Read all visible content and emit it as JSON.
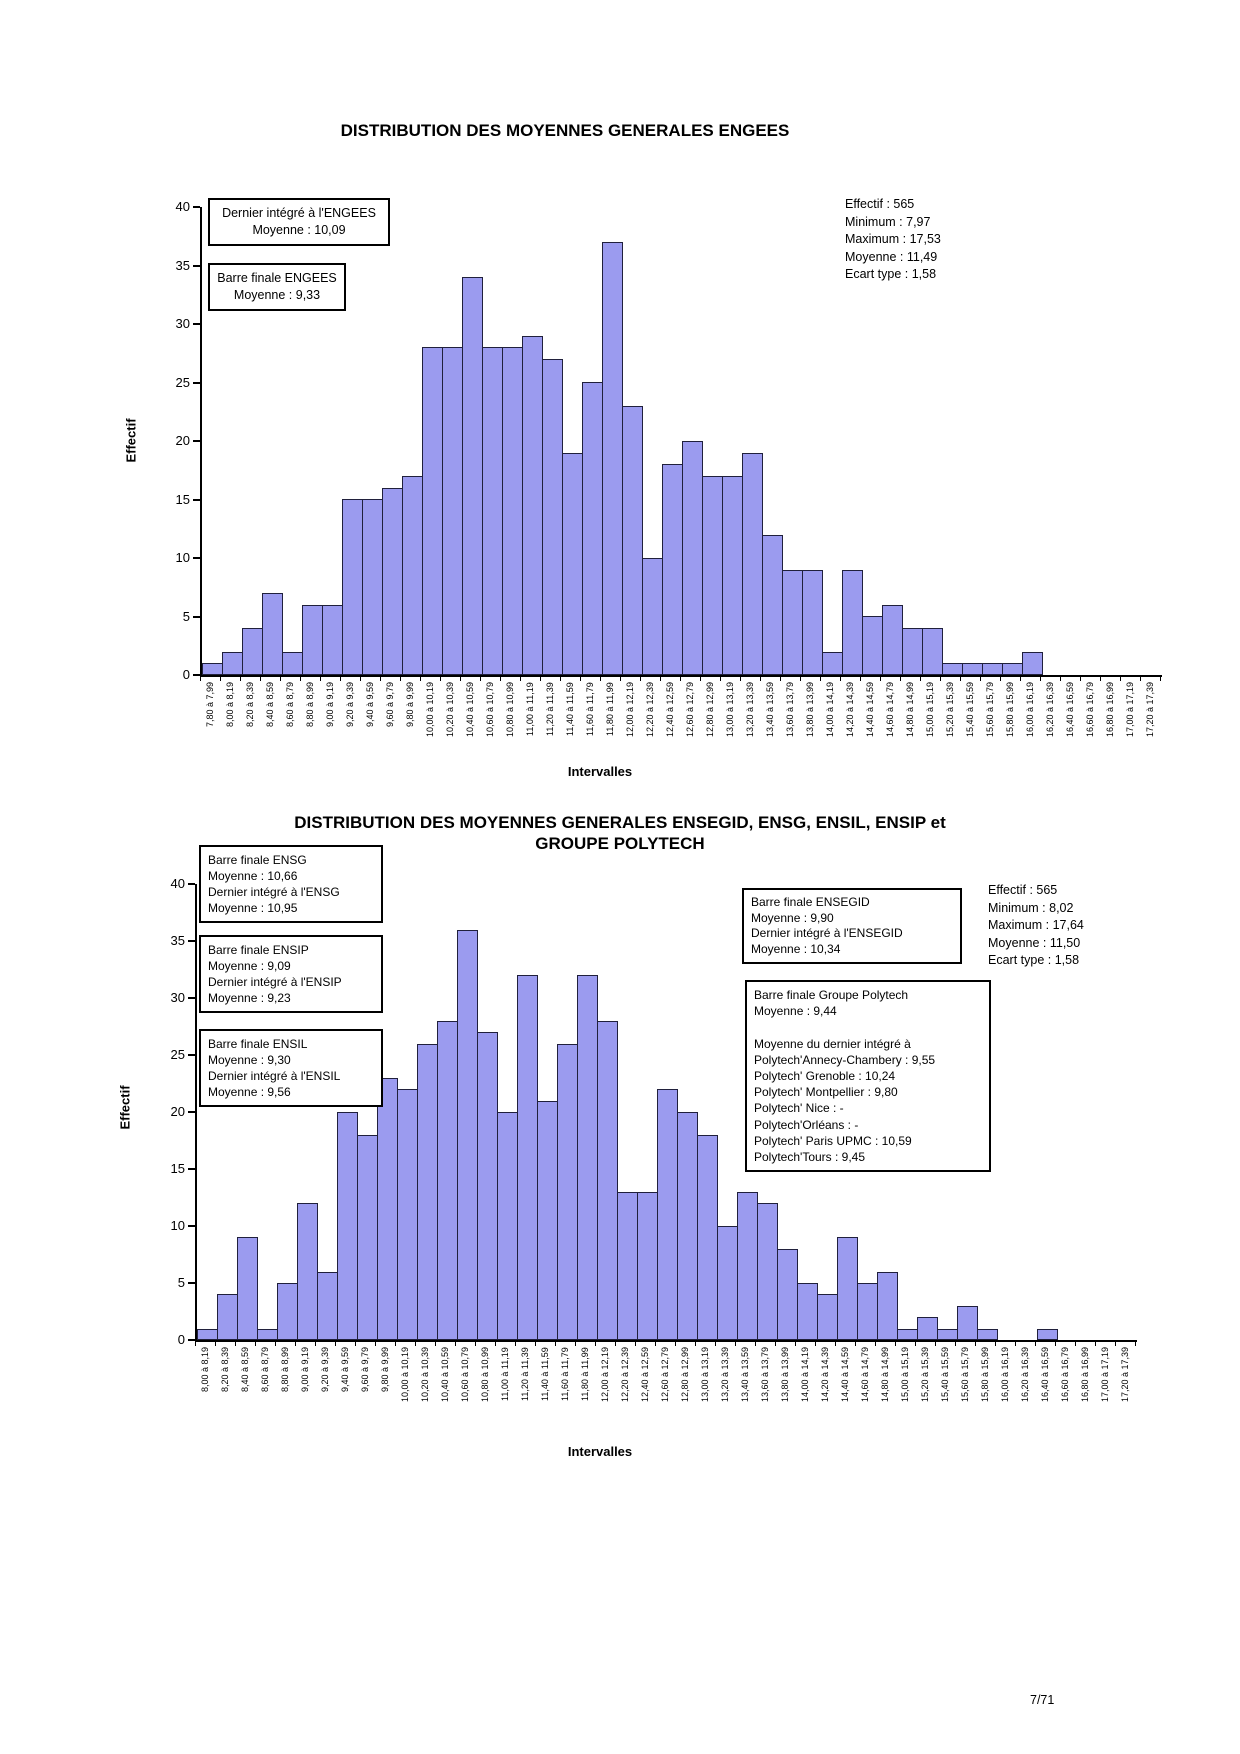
{
  "page": {
    "footer": "7/71"
  },
  "colors": {
    "bar_fill": "#9b9bef",
    "bar_border": "#20203c"
  },
  "chart_data": [
    {
      "type": "bar",
      "title": "DISTRIBUTION DES MOYENNES GENERALES ENGEES",
      "ylabel": "Effectif",
      "xlabel": "Intervalles",
      "ylim": [
        0,
        40
      ],
      "yticks": [
        40,
        35,
        30,
        25,
        20,
        15,
        10,
        5,
        0
      ],
      "legend": "none",
      "grid": false,
      "categories": [
        "7,80 à 7,99",
        "8,00 à 8,19",
        "8,20 à 8,39",
        "8,40 à 8,59",
        "8,60 à 8,79",
        "8,80 à 8,99",
        "9,00 à 9,19",
        "9,20 à 9,39",
        "9,40 à 9,59",
        "9,60 à 9,79",
        "9,80 à 9,99",
        "10,00 à 10,19",
        "10,20 à 10,39",
        "10,40 à 10,59",
        "10,60 à 10,79",
        "10,80 à 10,99",
        "11,00 à 11,19",
        "11,20 à 11,39",
        "11,40 à 11,59",
        "11,60 à 11,79",
        "11,80 à 11,99",
        "12,00 à 12,19",
        "12,20 à 12,39",
        "12,40 à 12,59",
        "12,60 à 12,79",
        "12,80 à 12,99",
        "13,00 à 13,19",
        "13,20 à 13,39",
        "13,40 à 13,59",
        "13,60 à 13,79",
        "13,80 à 13,99",
        "14,00 à 14,19",
        "14,20 à 14,39",
        "14,40 à 14,59",
        "14,60 à 14,79",
        "14,80 à 14,99",
        "15,00 à 15,19",
        "15,20 à 15,39",
        "15,40 à 15,59",
        "15,60 à 15,79",
        "15,80 à 15,99",
        "16,00 à 16,19",
        "16,20 à 16,39",
        "16,40 à 16,59",
        "16,60 à 16,79",
        "16,80 à 16,99",
        "17,00 à 17,19",
        "17,20 à 17,39"
      ],
      "values": [
        1,
        2,
        4,
        7,
        2,
        6,
        6,
        15,
        15,
        16,
        17,
        28,
        28,
        34,
        28,
        28,
        29,
        27,
        19,
        25,
        37,
        23,
        10,
        18,
        20,
        17,
        17,
        19,
        12,
        9,
        9,
        2,
        9,
        5,
        6,
        4,
        4,
        1,
        1,
        1,
        1,
        2,
        0,
        0,
        0,
        0,
        0,
        0
      ],
      "stats_lines": [
        "Effectif : 565",
        "Minimum : 7,97",
        "Maximum : 17,53",
        "Moyenne : 11,49",
        "Ecart type : 1,58"
      ],
      "annotations": [
        {
          "id": "dernier-engees",
          "lines": [
            "Dernier intégré à l'ENGEES",
            "Moyenne : 10,09"
          ]
        },
        {
          "id": "barre-engees",
          "lines": [
            "Barre finale ENGEES",
            "Moyenne : 9,33"
          ]
        }
      ]
    },
    {
      "type": "bar",
      "title": "DISTRIBUTION DES MOYENNES GENERALES ENSEGID, ENSG, ENSIL, ENSIP et",
      "title_line2": "GROUPE POLYTECH",
      "ylabel": "Effectif",
      "xlabel": "Intervalles",
      "ylim": [
        0,
        40
      ],
      "yticks": [
        40,
        35,
        30,
        25,
        20,
        15,
        10,
        5,
        0
      ],
      "legend": "none",
      "grid": false,
      "categories": [
        "8,00 à 8,19",
        "8,20 à 8,39",
        "8,40 à 8,59",
        "8,60 à 8,79",
        "8,80 à 8,99",
        "9,00 à 9,19",
        "9,20 à 9,39",
        "9,40 à 9,59",
        "9,60 à 9,79",
        "9,80 à 9,99",
        "10,00 à 10,19",
        "10,20 à 10,39",
        "10,40 à 10,59",
        "10,60 à 10,79",
        "10,80 à 10,99",
        "11,00 à 11,19",
        "11,20 à 11,39",
        "11,40 à 11,59",
        "11,60 à 11,79",
        "11,80 à 11,99",
        "12,00 à 12,19",
        "12,20 à 12,39",
        "12,40 à 12,59",
        "12,60 à 12,79",
        "12,80 à 12,99",
        "13,00 à 13,19",
        "13,20 à 13,39",
        "13,40 à 13,59",
        "13,60 à 13,79",
        "13,80 à 13,99",
        "14,00 à 14,19",
        "14,20 à 14,39",
        "14,40 à 14,59",
        "14,60 à 14,79",
        "14,80 à 14,99",
        "15,00 à 15,19",
        "15,20 à 15,39",
        "15,40 à 15,59",
        "15,60 à 15,79",
        "15,80 à 15,99",
        "16,00 à 16,19",
        "16,20 à 16,39",
        "16,40 à 16,59",
        "16,60 à 16,79",
        "16,80 à 16,99",
        "17,00 à 17,19",
        "17,20 à 17,39"
      ],
      "values": [
        1,
        4,
        9,
        1,
        5,
        12,
        6,
        20,
        18,
        23,
        22,
        26,
        28,
        36,
        27,
        20,
        32,
        21,
        26,
        32,
        28,
        13,
        13,
        22,
        20,
        18,
        10,
        13,
        12,
        8,
        5,
        4,
        9,
        5,
        6,
        1,
        2,
        1,
        3,
        1,
        0,
        0,
        1,
        0,
        0,
        0,
        0
      ],
      "stats_lines": [
        "Effectif : 565",
        "Minimum : 8,02",
        "Maximum : 17,64",
        "Moyenne : 11,50",
        "Ecart type : 1,58"
      ],
      "annotations": [
        {
          "id": "ensg",
          "lines": [
            "Barre finale ENSG",
            "Moyenne : 10,66",
            "Dernier intégré à l'ENSG",
            "Moyenne : 10,95"
          ]
        },
        {
          "id": "ensip",
          "lines": [
            "Barre finale ENSIP",
            "Moyenne : 9,09",
            "Dernier intégré à l'ENSIP",
            "Moyenne : 9,23"
          ]
        },
        {
          "id": "ensil",
          "lines": [
            "Barre finale ENSIL",
            "Moyenne : 9,30",
            "Dernier intégré à l'ENSIL",
            "Moyenne : 9,56"
          ]
        },
        {
          "id": "ensegid",
          "lines": [
            "Barre finale ENSEGID",
            "Moyenne : 9,90",
            "Dernier intégré à l'ENSEGID",
            "Moyenne : 10,34"
          ]
        },
        {
          "id": "polytech",
          "lines": [
            "Barre finale Groupe Polytech",
            "Moyenne : 9,44",
            "",
            "Moyenne du dernier intégré à",
            "Polytech'Annecy-Chambery : 9,55",
            "Polytech' Grenoble : 10,24",
            "Polytech' Montpellier : 9,80",
            "Polytech' Nice : -",
            "Polytech'Orléans : -",
            "Polytech' Paris UPMC : 10,59",
            "Polytech'Tours : 9,45"
          ]
        }
      ]
    }
  ]
}
